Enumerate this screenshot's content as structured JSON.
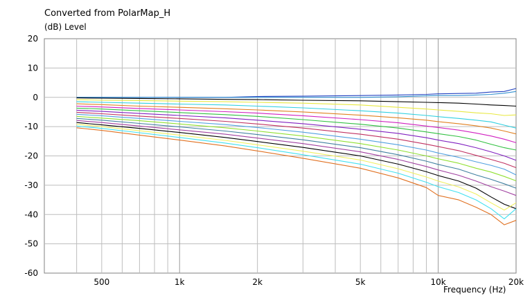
{
  "chart_data": {
    "type": "line",
    "title": "Converted from PolarMap_H",
    "ylabel": "(dB)  Level",
    "xlabel": "Frequency  (Hz)",
    "xscale": "log",
    "xlim": [
      300,
      20000
    ],
    "ylim": [
      -60,
      20
    ],
    "grid": true,
    "legend": "none",
    "x_ticks": [
      {
        "value": 500,
        "label": "500"
      },
      {
        "value": 1000,
        "label": "1k"
      },
      {
        "value": 2000,
        "label": "2k"
      },
      {
        "value": 5000,
        "label": "5k"
      },
      {
        "value": 10000,
        "label": "10k"
      },
      {
        "value": 20000,
        "label": "20k"
      }
    ],
    "y_ticks": [
      {
        "value": 20,
        "label": "20"
      },
      {
        "value": 10,
        "label": "10"
      },
      {
        "value": 0,
        "label": "0"
      },
      {
        "value": -10,
        "label": "-10"
      },
      {
        "value": -20,
        "label": "-20"
      },
      {
        "value": -30,
        "label": "-30"
      },
      {
        "value": -40,
        "label": "-40"
      },
      {
        "value": -50,
        "label": "-50"
      },
      {
        "value": -60,
        "label": "-60"
      }
    ],
    "x": [
      400,
      500,
      700,
      1000,
      1500,
      2000,
      3000,
      5000,
      7000,
      9000,
      10000,
      12000,
      14000,
      16000,
      18000,
      20000
    ],
    "series": [
      {
        "color": "#2040c0",
        "values": [
          0,
          0,
          0,
          0,
          0,
          0.3,
          0.4,
          0.6,
          0.8,
          1.0,
          1.2,
          1.3,
          1.4,
          1.8,
          2.0,
          3.0
        ]
      },
      {
        "color": "#3090d0",
        "values": [
          0,
          0,
          0,
          0,
          0,
          0,
          0,
          0,
          0.2,
          0.5,
          0.6,
          0.6,
          0.8,
          1.0,
          1.4,
          2.0
        ]
      },
      {
        "color": "#000000",
        "values": [
          -0.2,
          -0.3,
          -0.4,
          -0.5,
          -0.7,
          -0.8,
          -1.0,
          -1.2,
          -1.5,
          -1.7,
          -1.8,
          -2.0,
          -2.3,
          -2.6,
          -2.8,
          -3.0
        ]
      },
      {
        "color": "#e8e840",
        "values": [
          -0.8,
          -1.0,
          -1.1,
          -1.3,
          -1.5,
          -1.7,
          -2.0,
          -2.6,
          -3.4,
          -4.0,
          -4.3,
          -4.8,
          -5.3,
          -5.6,
          -6.2,
          -6.0
        ]
      },
      {
        "color": "#30d0e0",
        "values": [
          -1.5,
          -1.7,
          -2.0,
          -2.3,
          -2.6,
          -3.0,
          -3.6,
          -4.6,
          -5.4,
          -6.2,
          -6.6,
          -7.2,
          -7.8,
          -8.4,
          -9.5,
          -10.5
        ]
      },
      {
        "color": "#e08020",
        "values": [
          -2.2,
          -2.5,
          -3.0,
          -3.4,
          -3.9,
          -4.3,
          -5.0,
          -6.1,
          -7.0,
          -7.8,
          -8.3,
          -9.0,
          -9.7,
          -10.5,
          -11.5,
          -12.5
        ]
      },
      {
        "color": "#d020c0",
        "values": [
          -3.0,
          -3.3,
          -3.8,
          -4.3,
          -4.9,
          -5.4,
          -6.3,
          -7.6,
          -8.7,
          -9.8,
          -10.3,
          -11.2,
          -12.2,
          -13.2,
          -14.3,
          -15.5
        ]
      },
      {
        "color": "#30c040",
        "values": [
          -3.7,
          -4.0,
          -4.6,
          -5.2,
          -5.9,
          -6.5,
          -7.6,
          -9.2,
          -10.5,
          -11.8,
          -12.4,
          -13.4,
          -14.6,
          -16.0,
          -17.2,
          -18.0
        ]
      },
      {
        "color": "#8020c0",
        "values": [
          -4.4,
          -4.8,
          -5.5,
          -6.2,
          -7.0,
          -7.8,
          -9.0,
          -10.9,
          -12.3,
          -13.8,
          -14.6,
          -15.8,
          -17.2,
          -18.6,
          -20.0,
          -21.5
        ]
      },
      {
        "color": "#c03060",
        "values": [
          -5.1,
          -5.6,
          -6.4,
          -7.2,
          -8.2,
          -9.1,
          -10.5,
          -12.6,
          -14.3,
          -16.0,
          -16.8,
          -18.2,
          -19.8,
          -21.2,
          -22.5,
          -24.0
        ]
      },
      {
        "color": "#50a0e0",
        "values": [
          -5.8,
          -6.3,
          -7.2,
          -8.2,
          -9.3,
          -10.3,
          -11.9,
          -14.3,
          -16.2,
          -18.0,
          -19.0,
          -20.5,
          -22.0,
          -23.2,
          -24.5,
          -26.5
        ]
      },
      {
        "color": "#90e030",
        "values": [
          -6.5,
          -7.1,
          -8.0,
          -9.1,
          -10.4,
          -11.5,
          -13.2,
          -15.8,
          -18.0,
          -20.0,
          -21.0,
          -22.5,
          -24.2,
          -25.5,
          -27.0,
          -28.5
        ]
      },
      {
        "color": "#4080a0",
        "values": [
          -7.2,
          -7.8,
          -8.9,
          -10.1,
          -11.5,
          -12.7,
          -14.5,
          -17.2,
          -19.6,
          -21.8,
          -22.9,
          -24.5,
          -26.5,
          -28.0,
          -29.5,
          -31.0
        ]
      },
      {
        "color": "#a040a0",
        "values": [
          -7.9,
          -8.6,
          -9.8,
          -11.1,
          -12.6,
          -13.9,
          -15.8,
          -18.6,
          -21.2,
          -23.6,
          -24.8,
          -26.6,
          -28.6,
          -30.5,
          -32.0,
          -33.5
        ]
      },
      {
        "color": "#000000",
        "values": [
          -8.6,
          -9.4,
          -10.6,
          -12.0,
          -13.7,
          -15.1,
          -17.1,
          -20.0,
          -22.8,
          -25.4,
          -26.7,
          -28.6,
          -31.0,
          -34.0,
          -36.5,
          -38.0
        ]
      },
      {
        "color": "#f0f060",
        "values": [
          -9.2,
          -10.0,
          -11.4,
          -12.9,
          -14.7,
          -16.2,
          -18.4,
          -21.4,
          -24.4,
          -27.2,
          -28.6,
          -30.6,
          -33.0,
          -36.0,
          -38.5,
          -36.0
        ]
      },
      {
        "color": "#40e0f0",
        "values": [
          -9.8,
          -10.6,
          -12.1,
          -13.7,
          -15.6,
          -17.2,
          -19.6,
          -22.8,
          -25.9,
          -29.0,
          -30.5,
          -32.5,
          -35.0,
          -38.0,
          -41.5,
          -38.0
        ]
      },
      {
        "color": "#e07020",
        "values": [
          -10.4,
          -11.3,
          -12.9,
          -14.6,
          -16.6,
          -18.3,
          -20.8,
          -24.2,
          -27.5,
          -30.8,
          -33.5,
          -35.0,
          -37.5,
          -40.0,
          -43.5,
          -42.0
        ]
      }
    ]
  }
}
